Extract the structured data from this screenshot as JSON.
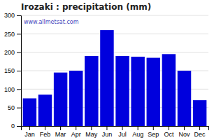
{
  "chart_data": {
    "type": "bar",
    "title": "Irozaki : precipitation (mm)",
    "categories": [
      "Jan",
      "Feb",
      "Mar",
      "Apr",
      "May",
      "Jun",
      "Jul",
      "Aug",
      "Sep",
      "Oct",
      "Nov",
      "Dec"
    ],
    "values": [
      75,
      85,
      145,
      150,
      190,
      260,
      190,
      188,
      185,
      195,
      150,
      70
    ],
    "color": "#0000dd",
    "ylim": [
      0,
      300
    ],
    "yticks": [
      0,
      50,
      100,
      150,
      200,
      250,
      300
    ],
    "grid": true,
    "annotations": [
      "www.allmetsat.com"
    ]
  }
}
